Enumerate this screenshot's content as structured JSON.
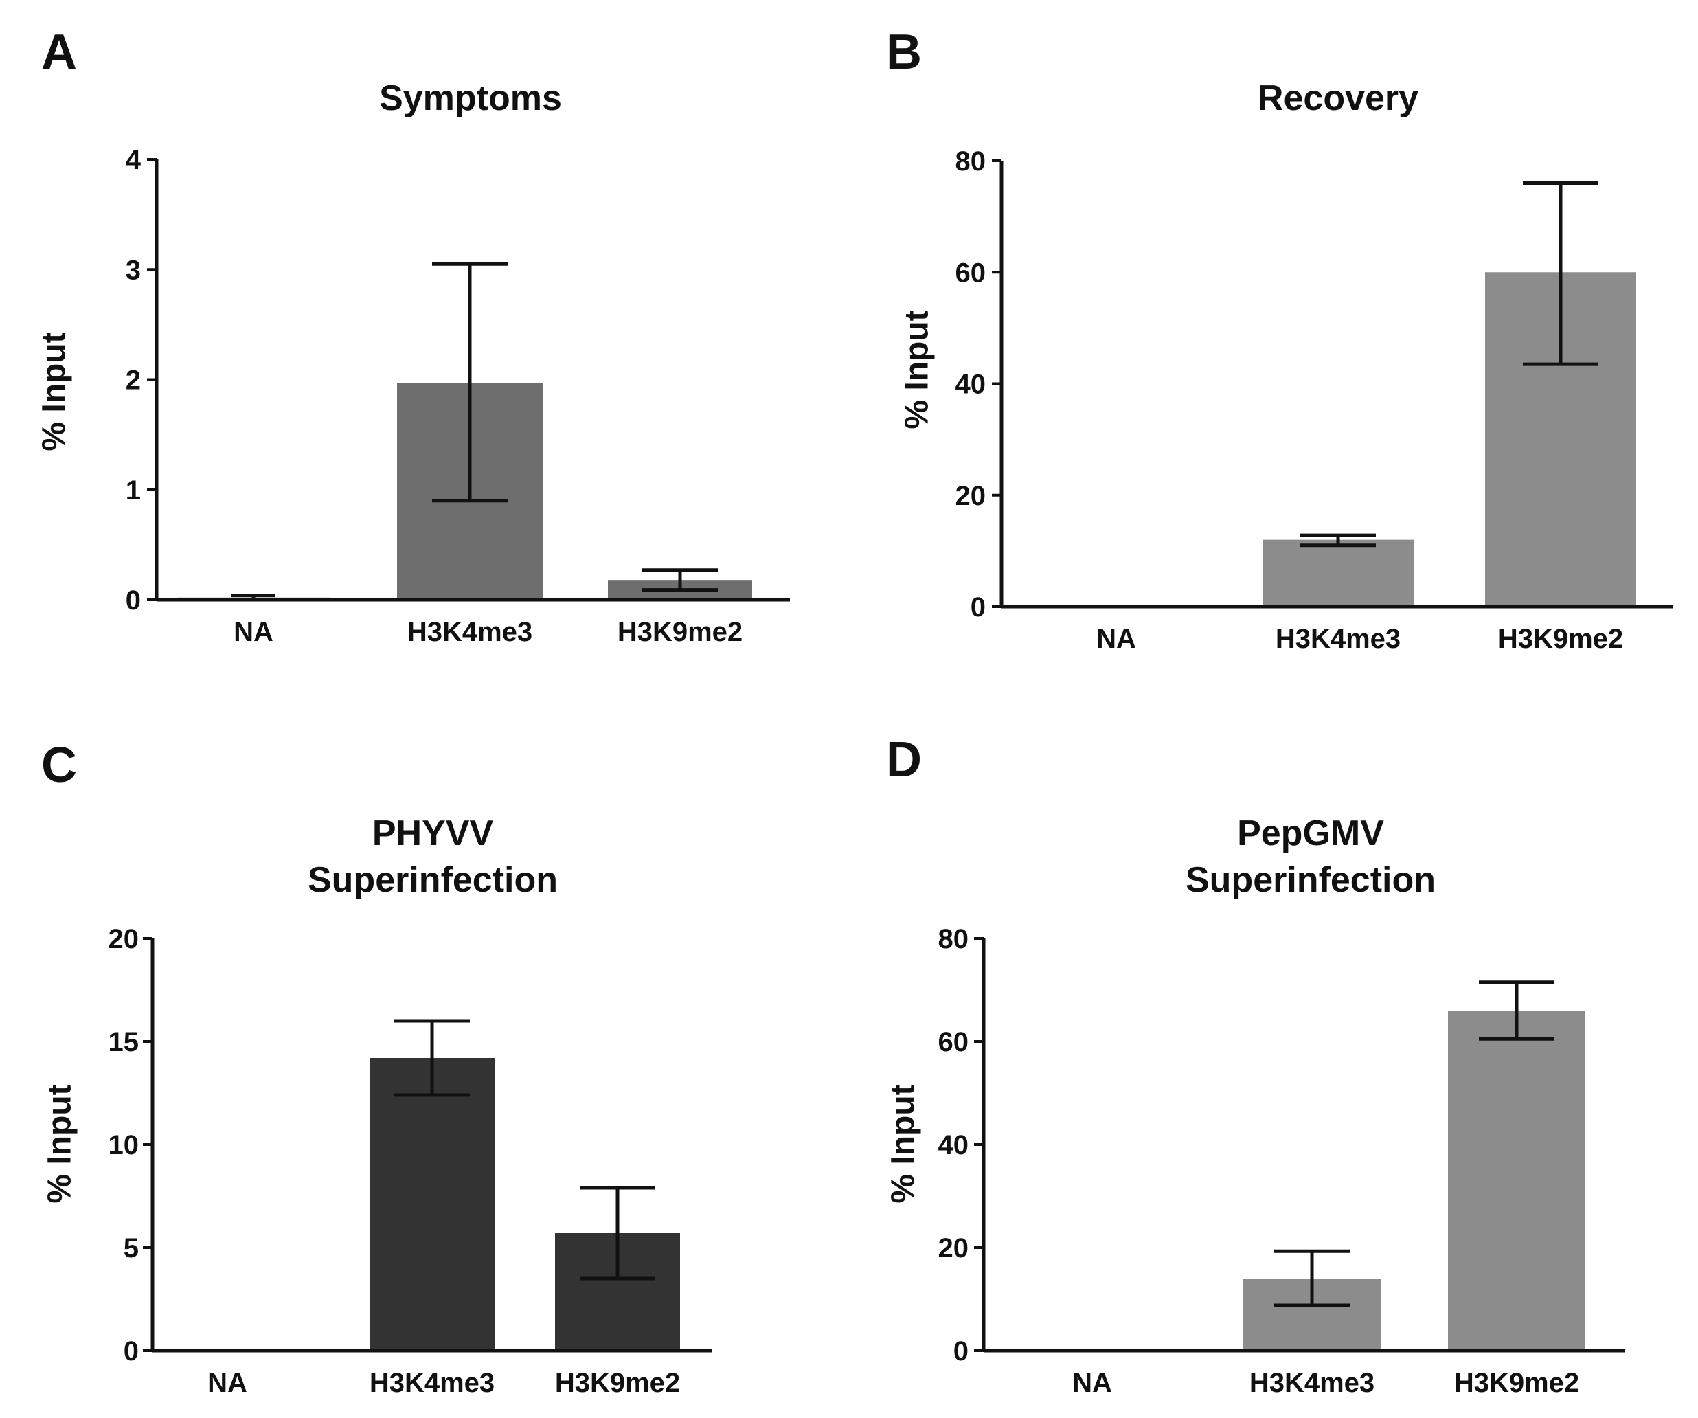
{
  "figure": {
    "panels": [
      "A",
      "B",
      "C",
      "D"
    ]
  },
  "chart_data": [
    {
      "type": "bar",
      "panel": "A",
      "title": [
        "Symptoms"
      ],
      "ylabel": "% Input",
      "xlabel": "",
      "ylim": [
        0,
        4
      ],
      "yticks": [
        0,
        1,
        2,
        3,
        4
      ],
      "categories": [
        "NA",
        "H3K4me3",
        "H3K9me2"
      ],
      "values": [
        0.02,
        1.97,
        0.18
      ],
      "errors": [
        [
          0.0,
          0.04
        ],
        [
          0.9,
          3.05
        ],
        [
          0.09,
          0.27
        ]
      ],
      "bar_color": "#6e6e6e"
    },
    {
      "type": "bar",
      "panel": "B",
      "title": [
        "Recovery"
      ],
      "ylabel": "% Input",
      "xlabel": "",
      "ylim": [
        0,
        80
      ],
      "yticks": [
        0,
        20,
        40,
        60,
        80
      ],
      "categories": [
        "NA",
        "H3K4me3",
        "H3K9me2"
      ],
      "values": [
        0,
        12,
        60
      ],
      "errors": [
        null,
        [
          11,
          12.8
        ],
        [
          43.5,
          76
        ]
      ],
      "bar_color": "#8c8c8c"
    },
    {
      "type": "bar",
      "panel": "C",
      "title": [
        "PHYVV",
        "Superinfection"
      ],
      "ylabel": "% Input",
      "xlabel": "",
      "ylim": [
        0,
        20
      ],
      "yticks": [
        0,
        5,
        10,
        15,
        20
      ],
      "categories": [
        "NA",
        "H3K4me3",
        "H3K9me2"
      ],
      "values": [
        0.05,
        14.2,
        5.7
      ],
      "errors": [
        null,
        [
          12.4,
          16
        ],
        [
          3.5,
          7.9
        ]
      ],
      "bar_color": "#333333"
    },
    {
      "type": "bar",
      "panel": "D",
      "title": [
        "PepGMV",
        "Superinfection"
      ],
      "ylabel": "% Input",
      "xlabel": "",
      "ylim": [
        0,
        80
      ],
      "yticks": [
        0,
        20,
        40,
        60,
        80
      ],
      "categories": [
        "NA",
        "H3K4me3",
        "H3K9me2"
      ],
      "values": [
        0,
        14,
        66
      ],
      "errors": [
        null,
        [
          8.8,
          19.3
        ],
        [
          60.5,
          71.5
        ]
      ],
      "bar_color": "#8c8c8c"
    }
  ]
}
